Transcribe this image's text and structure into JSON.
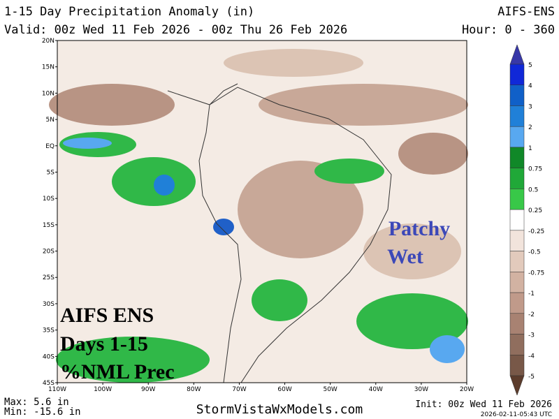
{
  "header": {
    "title": "1-15 Day Precipitation Anomaly (in)",
    "model": "AIFS-ENS",
    "valid": "Valid: 00z Wed 11 Feb 2026 - 00z Thu 26 Feb 2026",
    "hour": "Hour: 0 - 360"
  },
  "map": {
    "lat_labels": [
      "20N",
      "15N",
      "10N",
      "5N",
      "EQ",
      "5S",
      "10S",
      "15S",
      "20S",
      "25S",
      "30S",
      "35S",
      "40S",
      "45S"
    ],
    "lon_labels": [
      "110W",
      "100W",
      "90W",
      "80W",
      "70W",
      "60W",
      "50W",
      "40W",
      "30W",
      "20W"
    ],
    "annotations": {
      "patchy": "Patchy",
      "wet": "Wet",
      "model": "AIFS ENS",
      "days": "Days 1-15",
      "product": "%NML Prec"
    }
  },
  "colorbar": {
    "labels": [
      "5",
      "4",
      "3",
      "2",
      "1",
      "0.75",
      "0.5",
      "0.25",
      "-0.25",
      "-0.5",
      "-0.75",
      "-1",
      "-2",
      "-3",
      "-4",
      "-5"
    ],
    "colors": [
      "#3838a8",
      "#1028d8",
      "#1060c8",
      "#2080d8",
      "#58a8f0",
      "#108828",
      "#20a838",
      "#38c848",
      "#ffffff",
      "#f2e4dc",
      "#e2cabc",
      "#d2b2a2",
      "#c09a8a",
      "#a88272",
      "#906e5e",
      "#785848",
      "#5c3c2c"
    ]
  },
  "footer": {
    "max": "Max: 5.6 in",
    "min": "Min: -15.6 in",
    "site": "StormVistaWxModels.com",
    "init": "Init: 00z Wed 11 Feb 2026",
    "stamp": "2026-02-11-05:43 UTC"
  }
}
